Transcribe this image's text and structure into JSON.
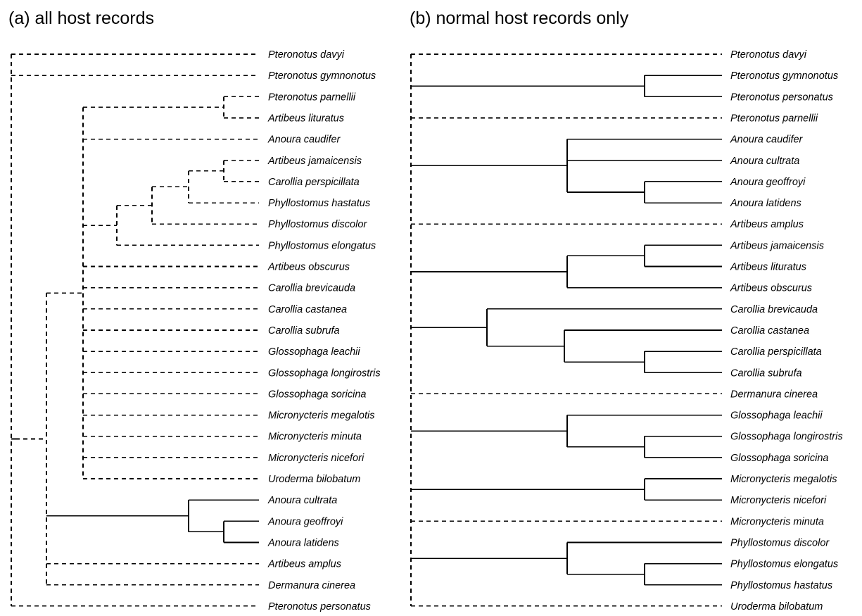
{
  "panels": {
    "a": {
      "title": "(a) all host records",
      "taxa": [
        "Pteronotus davyi",
        "Pteronotus gymnonotus",
        "Pteronotus parnellii",
        "Artibeus lituratus",
        "Anoura caudifer",
        "Artibeus jamaicensis",
        "Carollia perspicillata",
        "Phyllostomus hastatus",
        "Phyllostomus discolor",
        "Phyllostomus elongatus",
        "Artibeus obscurus",
        "Carollia brevicauda",
        "Carollia castanea",
        "Carollia subrufa",
        "Glossophaga leachii",
        "Glossophaga longirostris",
        "Glossophaga soricina",
        "Micronycteris megalotis",
        "Micronycteris minuta",
        "Micronycteris nicefori",
        "Uroderma bilobatum",
        "Anoura cultrata",
        "Anoura geoffroyi",
        "Anoura latidens",
        "Artibeus amplus",
        "Dermanura cinerea",
        "Pteronotus personatus"
      ]
    },
    "b": {
      "title": "(b) normal host records only",
      "taxa": [
        "Pteronotus davyi",
        "Pteronotus gymnonotus",
        "Pteronotus personatus",
        "Pteronotus parnellii",
        "Anoura caudifer",
        "Anoura cultrata",
        "Anoura geoffroyi",
        "Anoura latidens",
        "Artibeus amplus",
        "Artibeus jamaicensis",
        "Artibeus lituratus",
        "Artibeus obscurus",
        "Carollia brevicauda",
        "Carollia castanea",
        "Carollia perspicillata",
        "Carollia subrufa",
        "Dermanura cinerea",
        "Glossophaga leachii",
        "Glossophaga longirostris",
        "Glossophaga soricina",
        "Micronycteris megalotis",
        "Micronycteris nicefori",
        "Micronycteris minuta",
        "Phyllostomus discolor",
        "Phyllostomus elongatus",
        "Phyllostomus hastatus",
        "Uroderma bilobatum"
      ]
    }
  },
  "line_styles": {
    "solid": "supported clade",
    "dashed": "unresolved"
  }
}
